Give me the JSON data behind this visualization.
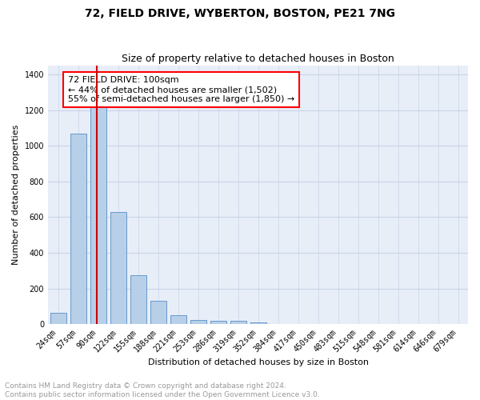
{
  "title": "72, FIELD DRIVE, WYBERTON, BOSTON, PE21 7NG",
  "subtitle": "Size of property relative to detached houses in Boston",
  "xlabel": "Distribution of detached houses by size in Boston",
  "ylabel": "Number of detached properties",
  "bin_labels": [
    "24sqm",
    "57sqm",
    "90sqm",
    "122sqm",
    "155sqm",
    "188sqm",
    "221sqm",
    "253sqm",
    "286sqm",
    "319sqm",
    "352sqm",
    "384sqm",
    "417sqm",
    "450sqm",
    "483sqm",
    "515sqm",
    "548sqm",
    "581sqm",
    "614sqm",
    "646sqm",
    "679sqm"
  ],
  "bin_values": [
    65,
    1070,
    1310,
    630,
    275,
    130,
    48,
    22,
    20,
    20,
    10,
    0,
    0,
    0,
    0,
    0,
    0,
    0,
    0,
    0,
    0
  ],
  "bar_color": "#b8cfe8",
  "bar_edge_color": "#6699cc",
  "red_line_color": "#cc0000",
  "annotation_text": "72 FIELD DRIVE: 100sqm\n← 44% of detached houses are smaller (1,502)\n55% of semi-detached houses are larger (1,850) →",
  "annotation_box_color": "white",
  "annotation_box_edge_color": "red",
  "ylim": [
    0,
    1450
  ],
  "yticks": [
    0,
    200,
    400,
    600,
    800,
    1000,
    1200,
    1400
  ],
  "grid_color": "#c8d4e8",
  "background_color": "#e8eef8",
  "footer_text": "Contains HM Land Registry data © Crown copyright and database right 2024.\nContains public sector information licensed under the Open Government Licence v3.0.",
  "title_fontsize": 10,
  "subtitle_fontsize": 9,
  "annotation_fontsize": 8,
  "footer_fontsize": 6.5,
  "ylabel_fontsize": 8,
  "xlabel_fontsize": 8,
  "tick_fontsize": 7
}
